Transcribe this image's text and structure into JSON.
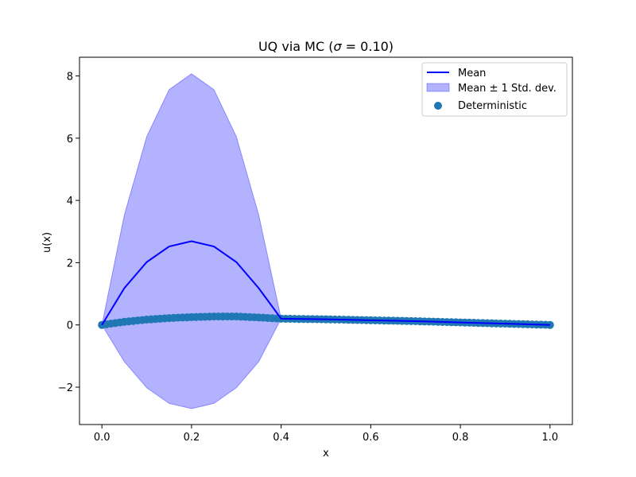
{
  "chart_data": {
    "type": "line",
    "title_prefix": "UQ via MC (",
    "title_sigma": "σ",
    "title_suffix": " = 0.10)",
    "xlabel": "x",
    "ylabel": "u(x)",
    "xlim": [
      -0.05,
      1.05
    ],
    "ylim": [
      -3.2,
      8.6
    ],
    "xticks": [
      0.0,
      0.2,
      0.4,
      0.6,
      0.8,
      1.0
    ],
    "xtick_labels": [
      "0.0",
      "0.2",
      "0.4",
      "0.6",
      "0.8",
      "1.0"
    ],
    "yticks": [
      -2,
      0,
      2,
      4,
      6,
      8
    ],
    "ytick_labels": [
      "−2",
      "0",
      "2",
      "4",
      "6",
      "8"
    ],
    "grid": false,
    "legend_position": "top-right",
    "colors": {
      "mean": "#0000ff",
      "band_fill": "#0000ff",
      "band_alpha": 0.3,
      "deterministic": "#1f77b4"
    },
    "series": [
      {
        "name": "Mean",
        "kind": "line",
        "x": [
          0.0,
          0.05,
          0.1,
          0.15,
          0.2,
          0.25,
          0.3,
          0.35,
          0.4,
          0.45,
          0.5,
          0.55,
          0.6,
          0.65,
          0.7,
          0.75,
          0.8,
          0.85,
          0.9,
          0.95,
          1.0
        ],
        "y": [
          0.0,
          1.18,
          2.02,
          2.52,
          2.69,
          2.52,
          2.02,
          1.18,
          0.2,
          0.19,
          0.18,
          0.165,
          0.15,
          0.135,
          0.12,
          0.1,
          0.08,
          0.06,
          0.04,
          0.02,
          0.0
        ]
      },
      {
        "name": "Mean ± 1 Std. dev.",
        "kind": "band",
        "x": [
          0.0,
          0.05,
          0.1,
          0.15,
          0.2,
          0.25,
          0.3,
          0.35,
          0.4,
          0.45,
          0.5,
          0.55,
          0.6,
          0.65,
          0.7,
          0.75,
          0.8,
          0.85,
          0.9,
          0.95,
          1.0
        ],
        "upper": [
          0.0,
          3.53,
          6.05,
          7.56,
          8.07,
          7.56,
          6.05,
          3.53,
          0.2,
          0.19,
          0.18,
          0.165,
          0.15,
          0.135,
          0.12,
          0.1,
          0.08,
          0.06,
          0.04,
          0.02,
          0.0
        ],
        "lower": [
          0.0,
          -1.18,
          -2.02,
          -2.52,
          -2.69,
          -2.52,
          -2.02,
          -1.18,
          0.2,
          0.19,
          0.18,
          0.165,
          0.15,
          0.135,
          0.12,
          0.1,
          0.08,
          0.06,
          0.04,
          0.02,
          0.0
        ]
      },
      {
        "name": "Deterministic",
        "kind": "scatter",
        "x_range": [
          0.0,
          1.0
        ],
        "n_points": 101,
        "profile_x": [
          0.0,
          0.05,
          0.1,
          0.15,
          0.2,
          0.25,
          0.3,
          0.35,
          0.4,
          0.5,
          0.6,
          0.7,
          0.8,
          0.9,
          1.0
        ],
        "profile_y": [
          0.0,
          0.1,
          0.17,
          0.22,
          0.25,
          0.27,
          0.27,
          0.24,
          0.2,
          0.18,
          0.15,
          0.12,
          0.08,
          0.04,
          0.0
        ]
      }
    ],
    "legend": [
      "Mean",
      "Mean ± 1 Std. dev.",
      "Deterministic"
    ]
  }
}
